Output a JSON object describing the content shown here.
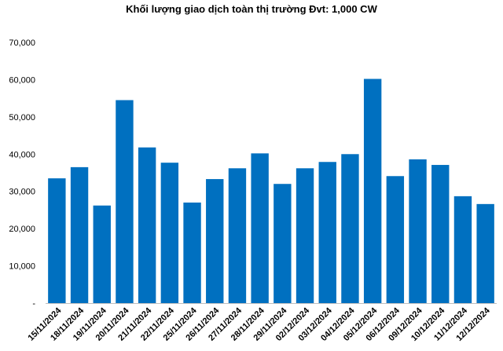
{
  "chart_data": {
    "type": "bar",
    "title": "Khối lượng giao dịch toàn thị trường Đvt: 1,000 CW",
    "xlabel": "",
    "ylabel": "",
    "ylim": [
      0,
      70000
    ],
    "y_ticks": [
      0,
      10000,
      20000,
      30000,
      40000,
      50000,
      60000,
      70000
    ],
    "y_tick_labels": [
      "-",
      "10,000",
      "20,000",
      "30,000",
      "40,000",
      "50,000",
      "60,000",
      "70,000"
    ],
    "grid": false,
    "legend": "none",
    "bar_color": "#0070C0",
    "categories": [
      "15/11/2024",
      "18/11/2024",
      "19/11/2024",
      "20/11/2024",
      "21/11/2024",
      "22/11/2024",
      "25/11/2024",
      "26/11/2024",
      "27/11/2024",
      "28/11/2024",
      "29/11/2024",
      "02/12/2024",
      "03/12/2024",
      "04/12/2024",
      "05/12/2024",
      "06/12/2024",
      "09/12/2024",
      "10/12/2024",
      "11/12/2024",
      "12/12/2024"
    ],
    "values": [
      33500,
      36500,
      26200,
      54500,
      41800,
      37700,
      27000,
      33300,
      36200,
      40200,
      32000,
      36200,
      37900,
      40000,
      60200,
      34100,
      38600,
      37100,
      28700,
      26600
    ]
  }
}
